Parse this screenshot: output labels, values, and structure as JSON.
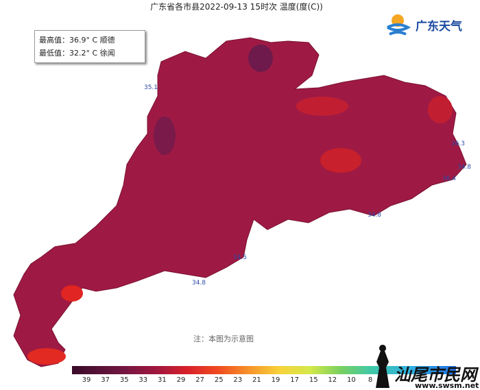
{
  "title": "广东省各市县2022-09-13 15时次 温度(度(C))",
  "extremes": {
    "max": "最高值：36.9° C 顺德",
    "min": "最低值：32.2° C 徐闻"
  },
  "logo": "广东天气",
  "note": "注：本图为示意图",
  "colorbar": {
    "ticks": [
      39,
      37,
      35,
      33,
      31,
      29,
      27,
      25,
      23,
      21,
      19,
      17,
      15,
      12,
      10,
      8
    ]
  },
  "map_labels": [
    "35.1",
    "36.3",
    "34.8",
    "36.4",
    "34.8",
    "34.5",
    "34.8"
  ],
  "watermark": {
    "text": "汕尾市民网",
    "url": "www.swsm.net"
  }
}
